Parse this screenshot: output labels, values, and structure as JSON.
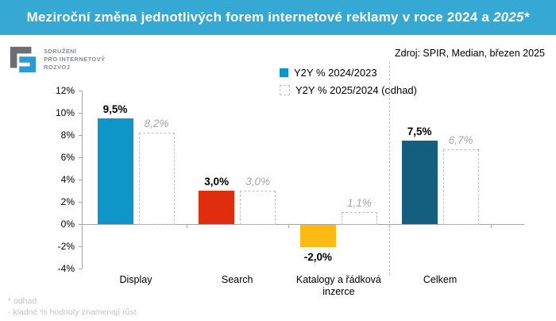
{
  "header": {
    "title_prefix": "Meziroční změna jednotlivých forem internetové reklamy v roce 2024 a ",
    "title_emph": "2025*"
  },
  "logo": {
    "org_lines": [
      "SDRUŽENÍ",
      "PRO INTERNETOVÝ",
      "ROZVOJ"
    ]
  },
  "source_note": "Zdroj: SPIR, Median, březen 2025",
  "legend": [
    {
      "label": "Y2Y % 2024/2023",
      "style": "solid"
    },
    {
      "label": "Y2Y % 2025/2024 (odhad)",
      "style": "dashed-outline"
    }
  ],
  "footnotes": [
    "* odhad",
    "- kladné % hodnoty znamenají růst"
  ],
  "colors": {
    "band": "#35A9D4",
    "axis": "#A6A6A6",
    "estimate_border": "#BFBFBF",
    "estimate_text": "#A6A6A6",
    "logo_gray": "#6D6E71",
    "logo_blue": "#2D9AD2"
  },
  "chart_data": {
    "type": "bar",
    "title": "Meziroční změna jednotlivých forem internetové reklamy v roce 2024 a 2025*",
    "source": "Zdroj: SPIR, Median, březen 2025",
    "categories": [
      "Display",
      "Search",
      "Katalogy a řádková inzerce",
      "Celkem"
    ],
    "series": [
      {
        "name": "Y2Y % 2024/2023",
        "style": "solid",
        "values": [
          9.5,
          3.0,
          -2.0,
          7.5
        ],
        "labels": [
          "9,5%",
          "3,0%",
          "-2,0%",
          "7,5%"
        ]
      },
      {
        "name": "Y2Y % 2025/2024 (odhad)",
        "style": "dashed-outline",
        "values": [
          8.2,
          3.0,
          1.1,
          6.7
        ],
        "labels": [
          "8,2%",
          "3,0%",
          "1,1%",
          "6,7%"
        ]
      }
    ],
    "bar_colors": [
      "#0E96C8",
      "#DF2D0E",
      "#FDBA12",
      "#145F7F"
    ],
    "xlabel": "",
    "ylabel": "",
    "ylim": [
      -4,
      12
    ],
    "yticks": [
      12,
      10,
      8,
      6,
      4,
      2,
      0,
      -2,
      -4
    ],
    "ytick_labels": [
      "12%",
      "10%",
      "8%",
      "6%",
      "4%",
      "2%",
      "0%",
      "-2%",
      "-4%"
    ],
    "grid": false,
    "legend_position": "top-center",
    "separator_before_category": "Celkem",
    "footnote": "* odhad · kladné % hodnoty znamenají růst"
  }
}
